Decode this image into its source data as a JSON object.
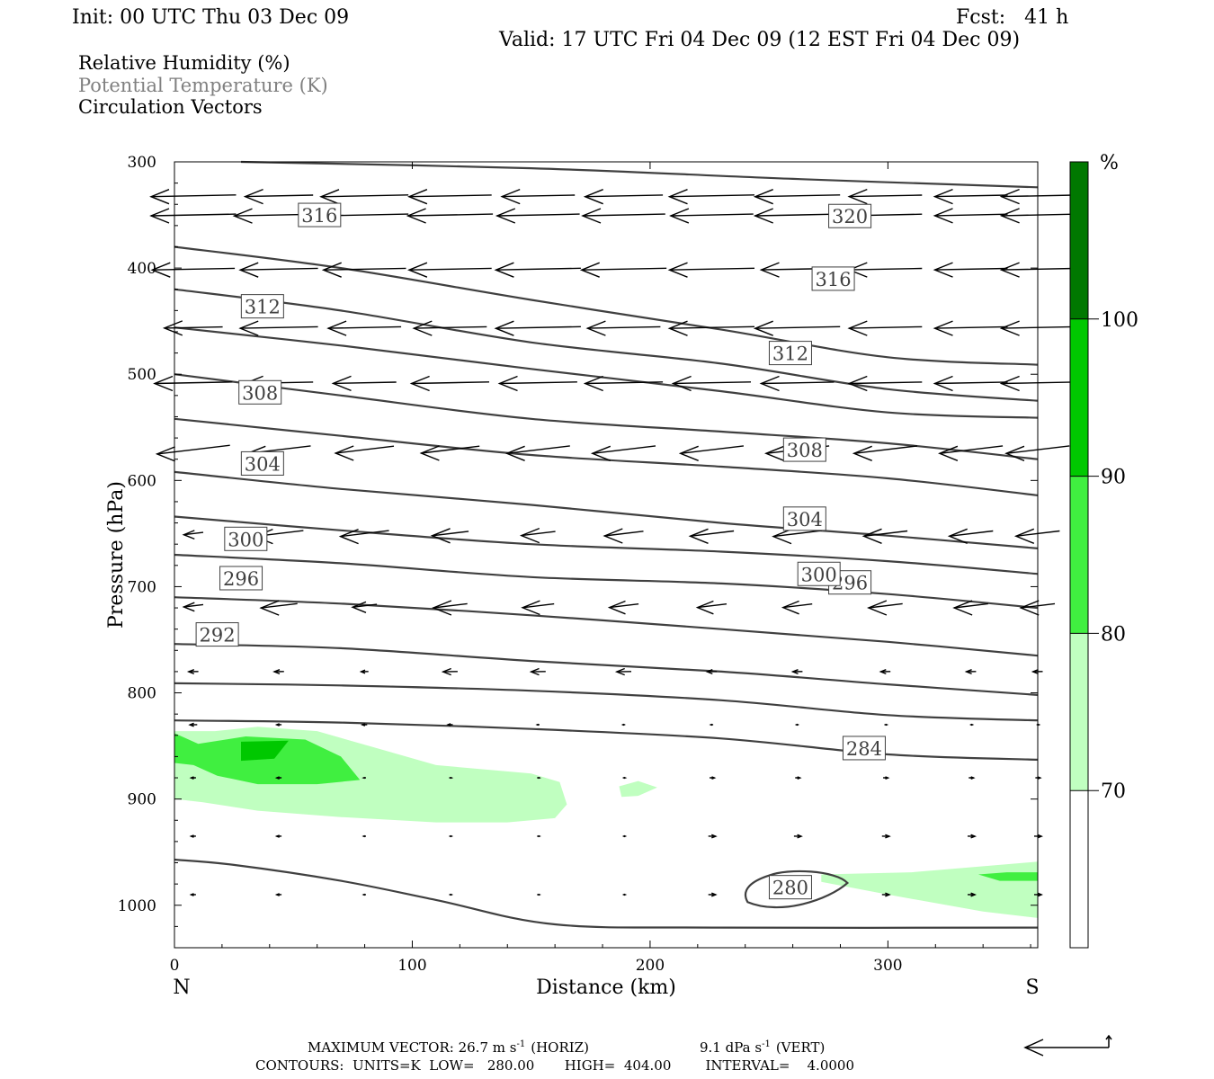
{
  "header": {
    "init": "Init: 00 UTC Thu 03 Dec 09",
    "fcst": "Fcst:   41 h",
    "valid": "Valid: 17 UTC Fri 04 Dec 09 (12 EST Fri 04 Dec 09)"
  },
  "legend": [
    {
      "text": "Relative Humidity (%)",
      "color": "#000000"
    },
    {
      "text": "Potential Temperature (K)",
      "color": "#808080"
    },
    {
      "text": "Circulation Vectors",
      "color": "#000000"
    }
  ],
  "footer": {
    "max_vector_prefix": "MAXIMUM VECTOR:  26.7 m s",
    "max_vector_horiz": "(HORIZ)",
    "max_vector_vert_prefix": "9.1 dPa s",
    "max_vector_vert": "(VERT)",
    "exponent": "-1",
    "contours": "CONTOURS:  UNITS=K  LOW=   280.00       HIGH=  404.00        INTERVAL=    4.0000"
  },
  "chart_data": {
    "type": "cross-section",
    "xlabel": "Distance (km)",
    "ylabel": "Pressure (hPa)",
    "x_ticks": [
      0,
      100,
      200,
      300
    ],
    "x_tick_labels": [
      "0",
      "100",
      "200",
      "300"
    ],
    "y_ticks": [
      300,
      400,
      500,
      600,
      700,
      800,
      900,
      1000
    ],
    "y_tick_labels": [
      "300",
      "400",
      "500",
      "600",
      "700",
      "800",
      "900",
      "1000"
    ],
    "y_scale": "linear-inverted",
    "xlim": [
      0,
      363
    ],
    "ylim": [
      1040,
      300
    ],
    "endpoints": {
      "left": "N",
      "right": "S"
    },
    "colorbar": {
      "unit": "%",
      "levels": [
        70,
        80,
        90,
        100
      ],
      "colors": [
        "#ffffff",
        "#c0ffc0",
        "#40ef40",
        "#00c800",
        "#007800"
      ]
    },
    "theta_contours": [
      {
        "value": 280,
        "label": "280",
        "points": [
          [
            0,
            957
          ],
          [
            25,
            962
          ],
          [
            70,
            977
          ],
          [
            110,
            995
          ],
          [
            160,
            1018
          ],
          [
            230,
            1021
          ],
          [
            363,
            1021
          ]
        ]
      },
      {
        "value": 284,
        "label": "284",
        "points": [
          [
            0,
            826
          ],
          [
            70,
            828
          ],
          [
            150,
            834
          ],
          [
            230,
            843
          ],
          [
            300,
            858
          ],
          [
            363,
            863
          ]
        ]
      },
      {
        "value": 288,
        "label": "",
        "points": [
          [
            0,
            791
          ],
          [
            70,
            793
          ],
          [
            150,
            798
          ],
          [
            230,
            807
          ],
          [
            300,
            821
          ],
          [
            363,
            826
          ]
        ]
      },
      {
        "value": 292,
        "label": "292",
        "points": [
          [
            0,
            754
          ],
          [
            70,
            758
          ],
          [
            150,
            770
          ],
          [
            230,
            780
          ],
          [
            300,
            792
          ],
          [
            363,
            802
          ]
        ]
      },
      {
        "value": 296,
        "label": "296",
        "points": [
          [
            0,
            710
          ],
          [
            70,
            716
          ],
          [
            150,
            727
          ],
          [
            230,
            740
          ],
          [
            300,
            752
          ],
          [
            363,
            765
          ]
        ]
      },
      {
        "value": 300,
        "label": "300",
        "points": [
          [
            0,
            670
          ],
          [
            70,
            678
          ],
          [
            150,
            691
          ],
          [
            230,
            697
          ],
          [
            300,
            707
          ],
          [
            363,
            720
          ]
        ]
      },
      {
        "value": 304,
        "label": "304",
        "points": [
          [
            0,
            634
          ],
          [
            70,
            647
          ],
          [
            150,
            660
          ],
          [
            230,
            667
          ],
          [
            300,
            676
          ],
          [
            363,
            688
          ]
        ]
      },
      {
        "value": 308,
        "label": "308",
        "points": [
          [
            0,
            592
          ],
          [
            70,
            608
          ],
          [
            150,
            623
          ],
          [
            230,
            640
          ],
          [
            300,
            652
          ],
          [
            363,
            664
          ]
        ]
      },
      {
        "value": 312,
        "label": "312",
        "points": [
          [
            0,
            542
          ],
          [
            70,
            558
          ],
          [
            150,
            576
          ],
          [
            230,
            587
          ],
          [
            300,
            598
          ],
          [
            363,
            614
          ]
        ]
      },
      {
        "value": 316,
        "label": "316",
        "points": [
          [
            0,
            500
          ],
          [
            70,
            520
          ],
          [
            150,
            542
          ],
          [
            230,
            554
          ],
          [
            300,
            565
          ],
          [
            363,
            580
          ]
        ]
      },
      {
        "value": 320,
        "label": "320",
        "points": [
          [
            0,
            456
          ],
          [
            70,
            473
          ],
          [
            150,
            495
          ],
          [
            230,
            516
          ],
          [
            300,
            536
          ],
          [
            363,
            541
          ]
        ]
      },
      {
        "value": 324,
        "label": "",
        "points": [
          [
            0,
            420
          ],
          [
            70,
            440
          ],
          [
            150,
            470
          ],
          [
            230,
            490
          ],
          [
            300,
            514
          ],
          [
            363,
            525
          ]
        ]
      },
      {
        "value": 328,
        "label": "",
        "points": [
          [
            0,
            380
          ],
          [
            70,
            400
          ],
          [
            150,
            430
          ],
          [
            230,
            458
          ],
          [
            300,
            484
          ],
          [
            363,
            491
          ]
        ]
      },
      {
        "value": 332,
        "label": "",
        "points": [
          [
            28,
            300
          ],
          [
            150,
            306
          ],
          [
            260,
            316
          ],
          [
            363,
            324
          ]
        ]
      }
    ],
    "rh_regions": [
      {
        "level": 70,
        "polygon": [
          [
            0,
            836
          ],
          [
            17,
            836
          ],
          [
            35,
            832
          ],
          [
            60,
            836
          ],
          [
            85,
            852
          ],
          [
            110,
            868
          ],
          [
            150,
            876
          ],
          [
            162,
            884
          ],
          [
            165,
            905
          ],
          [
            160,
            918
          ],
          [
            140,
            922
          ],
          [
            110,
            922
          ],
          [
            70,
            917
          ],
          [
            35,
            911
          ],
          [
            12,
            903
          ],
          [
            0,
            900
          ]
        ]
      },
      {
        "level": 70,
        "polygon": [
          [
            187,
            888
          ],
          [
            195,
            883
          ],
          [
            203,
            889
          ],
          [
            195,
            897
          ],
          [
            188,
            898
          ]
        ]
      },
      {
        "level": 70,
        "polygon": [
          [
            272,
            971
          ],
          [
            310,
            969
          ],
          [
            363,
            959
          ],
          [
            363,
            1012
          ],
          [
            340,
            1006
          ],
          [
            300,
            990
          ],
          [
            272,
            978
          ]
        ]
      },
      {
        "level": 80,
        "polygon": [
          [
            0,
            838
          ],
          [
            10,
            848
          ],
          [
            30,
            841
          ],
          [
            55,
            844
          ],
          [
            70,
            860
          ],
          [
            78,
            882
          ],
          [
            60,
            886
          ],
          [
            35,
            886
          ],
          [
            18,
            878
          ],
          [
            8,
            868
          ],
          [
            0,
            866
          ]
        ]
      },
      {
        "level": 90,
        "polygon": [
          [
            28,
            846
          ],
          [
            48,
            845
          ],
          [
            42,
            862
          ],
          [
            28,
            864
          ]
        ]
      },
      {
        "level": 80,
        "polygon": [
          [
            338,
            971
          ],
          [
            350,
            969
          ],
          [
            363,
            969
          ],
          [
            363,
            977
          ],
          [
            347,
            977
          ]
        ]
      }
    ],
    "vector_rows": [
      {
        "p": 332,
        "us": [
          -35,
          -28,
          -36,
          -34,
          -30,
          -32,
          -35,
          -35,
          -30,
          -30,
          -30
        ]
      },
      {
        "p": 350,
        "us": [
          -35,
          -37,
          -36,
          -35,
          -34,
          -34,
          -34,
          -35,
          -30,
          -30,
          -30
        ]
      },
      {
        "p": 401,
        "us": [
          -34,
          -32,
          -34,
          -34,
          -35,
          -35,
          -35,
          -30,
          -30,
          -30,
          -30
        ]
      },
      {
        "p": 456,
        "us": [
          -24,
          -32,
          -30,
          -30,
          -35,
          -30,
          -35,
          -35,
          -30,
          -30,
          -30
        ]
      },
      {
        "p": 508,
        "us": [
          -32,
          -28,
          -26,
          -32,
          -32,
          -32,
          -32,
          -30,
          -30,
          -30,
          -30
        ]
      },
      {
        "p": 571,
        "us": [
          -30,
          -26,
          -24,
          -24,
          -26,
          -26,
          -26,
          -26,
          -26,
          -26,
          -26
        ]
      },
      {
        "p": 650,
        "us": [
          -8,
          -20,
          -20,
          -15,
          -14,
          -16,
          -18,
          -20,
          -18,
          -18,
          -18
        ]
      },
      {
        "p": 718,
        "us": [
          -8,
          -15,
          -10,
          -14,
          -13,
          -12,
          -12,
          -12,
          -14,
          -14,
          -14
        ]
      },
      {
        "p": 780,
        "us": [
          -4,
          -4,
          -3,
          -6,
          -6,
          -6,
          -4,
          -4,
          -4,
          -4,
          -4
        ]
      },
      {
        "p": 830,
        "us": [
          -3,
          -2,
          -2,
          -2,
          -1,
          -1,
          -1,
          -1,
          1,
          1,
          1
        ]
      },
      {
        "p": 880,
        "us": [
          -2,
          -2,
          -1,
          1,
          1,
          1,
          2,
          2,
          2,
          2,
          2
        ]
      },
      {
        "p": 935,
        "us": [
          -2,
          -2,
          -1,
          1,
          1,
          1,
          3,
          3,
          3,
          3,
          3
        ]
      },
      {
        "p": 990,
        "us": [
          -2,
          -2,
          -1,
          1,
          1,
          1,
          3,
          3,
          3,
          3,
          3
        ]
      }
    ],
    "vector_x": [
      5,
      41,
      77,
      113,
      150,
      186,
      223,
      259,
      296,
      332,
      360
    ]
  }
}
